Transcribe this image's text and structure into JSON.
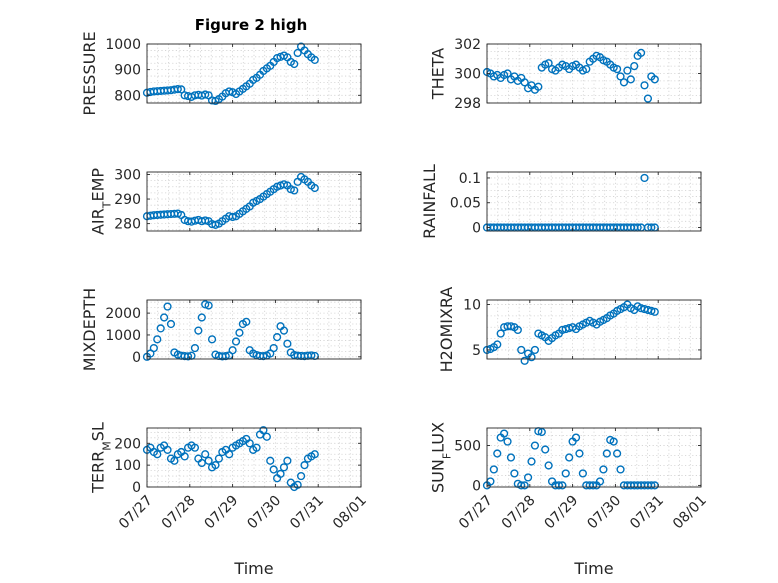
{
  "figure": {
    "title": "Figure 2 high"
  },
  "chart_data": [
    {
      "type": "scatter",
      "ylabel": "PRESSURE",
      "xlabel": "",
      "xlim": [
        0,
        5
      ],
      "ylim": [
        770,
        1000
      ],
      "yticks": [
        800,
        900,
        1000
      ],
      "xticks": [
        0,
        1,
        2,
        3,
        4,
        5
      ],
      "xticklabels": [],
      "grid": true,
      "series": [
        {
          "marker": "circle",
          "color": "#0072bd",
          "x": [
            0,
            0.08,
            0.16,
            0.24,
            0.32,
            0.4,
            0.48,
            0.56,
            0.64,
            0.72,
            0.8,
            0.88,
            0.96,
            1.04,
            1.12,
            1.2,
            1.28,
            1.36,
            1.44,
            1.52,
            1.6,
            1.68,
            1.76,
            1.84,
            1.92,
            2.0,
            2.08,
            2.16,
            2.24,
            2.32,
            2.4,
            2.48,
            2.56,
            2.64,
            2.72,
            2.8,
            2.88,
            2.96,
            3.04,
            3.12,
            3.2,
            3.28,
            3.36,
            3.44,
            3.52,
            3.6,
            3.68,
            3.76,
            3.84,
            3.92
          ],
          "y": [
            810,
            813,
            815,
            816,
            817,
            818,
            819,
            820,
            822,
            824,
            823,
            800,
            797,
            794,
            800,
            802,
            799,
            803,
            800,
            780,
            778,
            785,
            795,
            808,
            815,
            812,
            805,
            815,
            825,
            835,
            845,
            860,
            868,
            880,
            895,
            905,
            915,
            930,
            945,
            950,
            955,
            948,
            930,
            922,
            965,
            990,
            975,
            960,
            948,
            938
          ]
        }
      ]
    },
    {
      "type": "scatter",
      "ylabel": "THETA",
      "xlabel": "",
      "xlim": [
        0,
        5
      ],
      "ylim": [
        298,
        302
      ],
      "yticks": [
        298,
        300,
        302
      ],
      "xticks": [
        0,
        1,
        2,
        3,
        4,
        5
      ],
      "xticklabels": [],
      "grid": true,
      "series": [
        {
          "marker": "circle",
          "color": "#0072bd",
          "x": [
            0,
            0.08,
            0.16,
            0.24,
            0.32,
            0.4,
            0.48,
            0.56,
            0.64,
            0.72,
            0.8,
            0.88,
            0.96,
            1.04,
            1.12,
            1.2,
            1.28,
            1.36,
            1.44,
            1.52,
            1.6,
            1.68,
            1.76,
            1.84,
            1.92,
            2.0,
            2.08,
            2.16,
            2.24,
            2.32,
            2.4,
            2.48,
            2.56,
            2.64,
            2.72,
            2.8,
            2.88,
            2.96,
            3.04,
            3.12,
            3.2,
            3.28,
            3.36,
            3.44,
            3.52,
            3.6,
            3.68,
            3.76,
            3.84,
            3.92
          ],
          "y": [
            300.1,
            300.0,
            299.8,
            299.9,
            299.7,
            299.9,
            300.0,
            299.6,
            299.8,
            299.5,
            299.7,
            299.4,
            299.0,
            299.2,
            298.9,
            299.1,
            300.4,
            300.6,
            300.7,
            300.3,
            300.2,
            300.4,
            300.6,
            300.5,
            300.3,
            300.5,
            300.6,
            300.4,
            300.2,
            300.3,
            300.8,
            301.0,
            301.2,
            301.1,
            300.9,
            300.8,
            300.6,
            300.4,
            300.3,
            299.8,
            299.4,
            300.2,
            299.6,
            300.5,
            301.2,
            301.4,
            299.2,
            298.3,
            299.8,
            299.6
          ]
        }
      ]
    },
    {
      "type": "scatter",
      "ylabel": "AIR_TEMP",
      "xlabel": "",
      "xlim": [
        0,
        5
      ],
      "ylim": [
        277,
        301
      ],
      "yticks": [
        280,
        290,
        300
      ],
      "xticks": [
        0,
        1,
        2,
        3,
        4,
        5
      ],
      "xticklabels": [],
      "grid": true,
      "series": [
        {
          "marker": "circle",
          "color": "#0072bd",
          "x": [
            0,
            0.08,
            0.16,
            0.24,
            0.32,
            0.4,
            0.48,
            0.56,
            0.64,
            0.72,
            0.8,
            0.88,
            0.96,
            1.04,
            1.12,
            1.2,
            1.28,
            1.36,
            1.44,
            1.52,
            1.6,
            1.68,
            1.76,
            1.84,
            1.92,
            2.0,
            2.08,
            2.16,
            2.24,
            2.32,
            2.4,
            2.48,
            2.56,
            2.64,
            2.72,
            2.8,
            2.88,
            2.96,
            3.04,
            3.12,
            3.2,
            3.28,
            3.36,
            3.44,
            3.52,
            3.6,
            3.68,
            3.76,
            3.84,
            3.92
          ],
          "y": [
            283,
            283.2,
            283.4,
            283.5,
            283.6,
            283.7,
            283.8,
            283.9,
            284,
            284.1,
            283.5,
            281.5,
            281.0,
            280.8,
            281.2,
            281.5,
            281.0,
            281.3,
            281.0,
            279.8,
            279.5,
            280.0,
            281.0,
            282.0,
            283.0,
            282.7,
            283.0,
            284.0,
            285.0,
            286.0,
            287.0,
            288.5,
            289.2,
            290.0,
            291.0,
            292.0,
            293.0,
            294.0,
            295.0,
            295.5,
            296.0,
            295.5,
            294.0,
            293.5,
            297.0,
            299.0,
            298.0,
            297.0,
            295.5,
            294.5
          ]
        }
      ]
    },
    {
      "type": "scatter",
      "ylabel": "RAINFALL",
      "xlabel": "",
      "xlim": [
        0,
        5
      ],
      "ylim": [
        -0.007,
        0.112
      ],
      "yticks": [
        0,
        0.05,
        0.1
      ],
      "xticks": [
        0,
        1,
        2,
        3,
        4,
        5
      ],
      "xticklabels": [],
      "grid": true,
      "series": [
        {
          "marker": "circle",
          "color": "#0072bd",
          "x": [
            0,
            0.08,
            0.16,
            0.24,
            0.32,
            0.4,
            0.48,
            0.56,
            0.64,
            0.72,
            0.8,
            0.88,
            0.96,
            1.04,
            1.12,
            1.2,
            1.28,
            1.36,
            1.44,
            1.52,
            1.6,
            1.68,
            1.76,
            1.84,
            1.92,
            2.0,
            2.08,
            2.16,
            2.24,
            2.32,
            2.4,
            2.48,
            2.56,
            2.64,
            2.72,
            2.8,
            2.88,
            2.96,
            3.04,
            3.12,
            3.2,
            3.28,
            3.36,
            3.44,
            3.52,
            3.6,
            3.68,
            3.76,
            3.84,
            3.92
          ],
          "y": [
            0,
            0,
            0,
            0,
            0,
            0,
            0,
            0,
            0,
            0,
            0,
            0,
            0,
            0,
            0,
            0,
            0,
            0,
            0,
            0,
            0,
            0,
            0,
            0,
            0,
            0,
            0,
            0,
            0,
            0,
            0,
            0,
            0,
            0,
            0,
            0,
            0,
            0,
            0,
            0,
            0,
            0,
            0,
            0,
            0,
            0,
            0.1,
            0,
            0,
            0
          ]
        }
      ]
    },
    {
      "type": "scatter",
      "ylabel": "MIXDEPTH",
      "xlabel": "",
      "xlim": [
        0,
        5
      ],
      "ylim": [
        -100,
        2600
      ],
      "yticks": [
        0,
        1000,
        2000
      ],
      "xticks": [
        0,
        1,
        2,
        3,
        4,
        5
      ],
      "xticklabels": [],
      "grid": true,
      "series": [
        {
          "marker": "circle",
          "color": "#0072bd",
          "x": [
            0,
            0.08,
            0.16,
            0.24,
            0.32,
            0.4,
            0.48,
            0.56,
            0.64,
            0.72,
            0.8,
            0.88,
            0.96,
            1.04,
            1.12,
            1.2,
            1.28,
            1.36,
            1.44,
            1.52,
            1.6,
            1.68,
            1.76,
            1.84,
            1.92,
            2.0,
            2.08,
            2.16,
            2.24,
            2.32,
            2.4,
            2.48,
            2.56,
            2.64,
            2.72,
            2.8,
            2.88,
            2.96,
            3.04,
            3.12,
            3.2,
            3.28,
            3.36,
            3.44,
            3.52,
            3.6,
            3.68,
            3.76,
            3.84,
            3.92
          ],
          "y": [
            0,
            150,
            400,
            800,
            1300,
            1800,
            2300,
            1500,
            200,
            100,
            50,
            30,
            20,
            50,
            400,
            1200,
            1800,
            2400,
            2350,
            800,
            100,
            40,
            20,
            30,
            60,
            300,
            700,
            1100,
            1500,
            1600,
            300,
            150,
            80,
            40,
            30,
            60,
            150,
            400,
            900,
            1400,
            1200,
            600,
            200,
            80,
            50,
            40,
            30,
            50,
            60,
            40
          ]
        }
      ]
    },
    {
      "type": "scatter",
      "ylabel": "H2OMIXRA",
      "xlabel": "",
      "xlim": [
        0,
        5
      ],
      "ylim": [
        4,
        10.5
      ],
      "yticks": [
        5,
        10
      ],
      "xticks": [
        0,
        1,
        2,
        3,
        4,
        5
      ],
      "xticklabels": [],
      "grid": true,
      "series": [
        {
          "marker": "circle",
          "color": "#0072bd",
          "x": [
            0,
            0.08,
            0.16,
            0.24,
            0.32,
            0.4,
            0.48,
            0.56,
            0.64,
            0.72,
            0.8,
            0.88,
            0.96,
            1.04,
            1.12,
            1.2,
            1.28,
            1.36,
            1.44,
            1.52,
            1.6,
            1.68,
            1.76,
            1.84,
            1.92,
            2.0,
            2.08,
            2.16,
            2.24,
            2.32,
            2.4,
            2.48,
            2.56,
            2.64,
            2.72,
            2.8,
            2.88,
            2.96,
            3.04,
            3.12,
            3.2,
            3.28,
            3.36,
            3.44,
            3.52,
            3.6,
            3.68,
            3.76,
            3.84,
            3.92
          ],
          "y": [
            5.0,
            5.1,
            5.3,
            5.6,
            6.8,
            7.5,
            7.6,
            7.6,
            7.5,
            7.2,
            5.0,
            3.8,
            4.6,
            4.2,
            5.0,
            6.8,
            6.6,
            6.4,
            6.0,
            6.3,
            6.6,
            6.8,
            7.2,
            7.3,
            7.4,
            7.5,
            7.3,
            7.6,
            7.8,
            8.0,
            8.2,
            8.0,
            7.8,
            8.1,
            8.3,
            8.5,
            8.8,
            9.0,
            9.3,
            9.5,
            9.7,
            10.0,
            9.6,
            9.4,
            9.8,
            9.6,
            9.5,
            9.4,
            9.3,
            9.2
          ]
        }
      ]
    },
    {
      "type": "scatter",
      "ylabel": "TERR_MSL",
      "xlabel": "Time",
      "xlim": [
        0,
        5
      ],
      "ylim": [
        0,
        270
      ],
      "yticks": [
        0,
        100,
        200
      ],
      "xticks": [
        0,
        1,
        2,
        3,
        4,
        5
      ],
      "xticklabels": [
        "07/27",
        "07/28",
        "07/29",
        "07/30",
        "07/31",
        "08/01"
      ],
      "grid": true,
      "series": [
        {
          "marker": "circle",
          "color": "#0072bd",
          "x": [
            0,
            0.08,
            0.16,
            0.24,
            0.32,
            0.4,
            0.48,
            0.56,
            0.64,
            0.72,
            0.8,
            0.88,
            0.96,
            1.04,
            1.12,
            1.2,
            1.28,
            1.36,
            1.44,
            1.52,
            1.6,
            1.68,
            1.76,
            1.84,
            1.92,
            2.0,
            2.08,
            2.16,
            2.24,
            2.32,
            2.4,
            2.48,
            2.56,
            2.64,
            2.72,
            2.8,
            2.88,
            2.96,
            3.04,
            3.12,
            3.2,
            3.28,
            3.36,
            3.44,
            3.52,
            3.6,
            3.68,
            3.76,
            3.84,
            3.92
          ],
          "y": [
            170,
            180,
            160,
            150,
            180,
            190,
            170,
            130,
            120,
            150,
            160,
            140,
            180,
            190,
            180,
            130,
            110,
            150,
            120,
            90,
            100,
            130,
            160,
            170,
            150,
            180,
            190,
            200,
            210,
            220,
            200,
            170,
            180,
            240,
            260,
            230,
            120,
            80,
            40,
            60,
            90,
            120,
            20,
            0,
            10,
            50,
            100,
            130,
            140,
            150
          ]
        }
      ]
    },
    {
      "type": "scatter",
      "ylabel": "SUN_FLUX",
      "xlabel": "Time",
      "xlim": [
        0,
        5
      ],
      "ylim": [
        -20,
        720
      ],
      "yticks": [
        0,
        500
      ],
      "xticks": [
        0,
        1,
        2,
        3,
        4,
        5
      ],
      "xticklabels": [
        "07/27",
        "07/28",
        "07/29",
        "07/30",
        "07/31",
        "08/01"
      ],
      "grid": true,
      "series": [
        {
          "marker": "circle",
          "color": "#0072bd",
          "x": [
            0,
            0.08,
            0.16,
            0.24,
            0.32,
            0.4,
            0.48,
            0.56,
            0.64,
            0.72,
            0.8,
            0.88,
            0.96,
            1.04,
            1.12,
            1.2,
            1.28,
            1.36,
            1.44,
            1.52,
            1.6,
            1.68,
            1.76,
            1.84,
            1.92,
            2.0,
            2.08,
            2.16,
            2.24,
            2.32,
            2.4,
            2.48,
            2.56,
            2.64,
            2.72,
            2.8,
            2.88,
            2.96,
            3.04,
            3.12,
            3.2,
            3.28,
            3.36,
            3.44,
            3.52,
            3.6,
            3.68,
            3.76,
            3.84,
            3.92
          ],
          "y": [
            0,
            50,
            200,
            400,
            600,
            650,
            550,
            350,
            150,
            20,
            0,
            0,
            100,
            300,
            500,
            680,
            670,
            450,
            250,
            50,
            0,
            0,
            0,
            150,
            350,
            550,
            600,
            400,
            150,
            0,
            0,
            0,
            0,
            50,
            200,
            400,
            570,
            550,
            400,
            200,
            0,
            0,
            0,
            0,
            0,
            0,
            0,
            0,
            0,
            0
          ]
        }
      ]
    }
  ]
}
